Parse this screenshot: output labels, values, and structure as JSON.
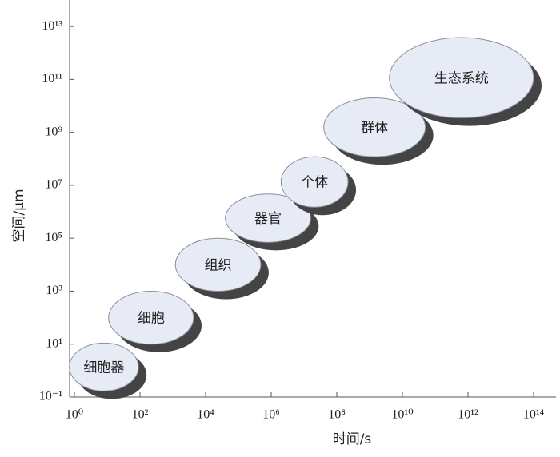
{
  "chart_data": {
    "type": "ellipse-range",
    "x_label": "时间/s",
    "y_label": "空间/μm",
    "log_scale": true,
    "xlim": [
      1,
      100000000000000
    ],
    "ylim": [
      0.1,
      100000000000000
    ],
    "xticks": [
      {
        "value": 1,
        "label": "10⁰"
      },
      {
        "value": 100,
        "label": "10²"
      },
      {
        "value": 10000,
        "label": "10⁴"
      },
      {
        "value": 1000000,
        "label": "10⁶"
      },
      {
        "value": 100000000,
        "label": "10⁸"
      },
      {
        "value": 10000000000,
        "label": "10¹⁰"
      },
      {
        "value": 1000000000000,
        "label": "10¹²"
      },
      {
        "value": 100000000000000,
        "label": "10¹⁴"
      }
    ],
    "yticks": [
      {
        "value": 0.1,
        "label": "10⁻¹"
      },
      {
        "value": 10,
        "label": "10¹"
      },
      {
        "value": 1000,
        "label": "10³"
      },
      {
        "value": 100000,
        "label": "10⁵"
      },
      {
        "value": 10000000,
        "label": "10⁷"
      },
      {
        "value": 1000000000,
        "label": "10⁹"
      },
      {
        "value": 100000000000,
        "label": "10¹¹"
      },
      {
        "value": 10000000000000,
        "label": "10¹³"
      }
    ],
    "color": "#e6ebf5",
    "shadow_color": "#444444",
    "items": [
      {
        "label": "细胞器",
        "x": [
          0.7,
          90
        ],
        "y": [
          0.17,
          11
        ]
      },
      {
        "label": "细胞",
        "x": [
          11,
          4300
        ],
        "y": [
          10,
          1000
        ]
      },
      {
        "label": "组织",
        "x": [
          1200,
          480000
        ],
        "y": [
          1000,
          100000
        ]
      },
      {
        "label": "器官",
        "x": [
          40000,
          16000000
        ],
        "y": [
          70000,
          4700000
        ]
      },
      {
        "label": "个体",
        "x": [
          2000000,
          220000000
        ],
        "y": [
          1500000,
          120000000
        ]
      },
      {
        "label": "群体",
        "x": [
          40000000,
          50000000000
        ],
        "y": [
          120000000,
          20000000000
        ]
      },
      {
        "label": "生态系统",
        "x": [
          4000000000,
          100000000000000
        ],
        "y": [
          3500000000,
          3800000000000
        ]
      }
    ]
  }
}
